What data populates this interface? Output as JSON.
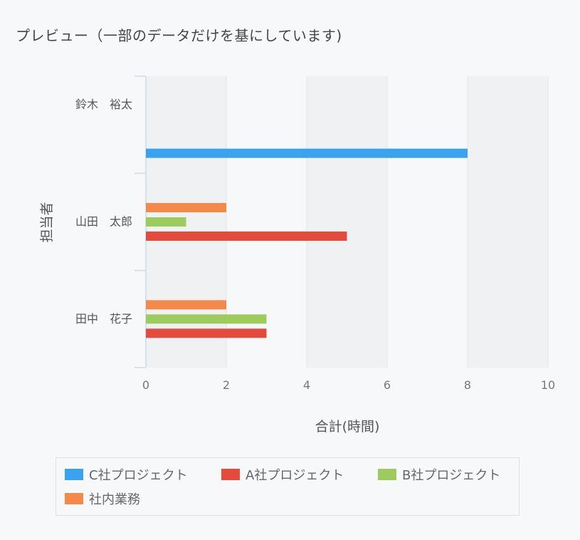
{
  "title": "プレビュー（一部のデータだけを基にしています)",
  "chart_data": {
    "type": "bar",
    "orientation": "horizontal",
    "categories": [
      "鈴木　裕太",
      "山田　太郎",
      "田中　花子"
    ],
    "series": [
      {
        "name": "C社プロジェクト",
        "color": "#3aa3ef",
        "values": [
          8,
          0,
          0
        ]
      },
      {
        "name": "A社プロジェクト",
        "color": "#e44b3c",
        "values": [
          0,
          5,
          3
        ]
      },
      {
        "name": "B社プロジェクト",
        "color": "#9dcb5c",
        "values": [
          0,
          1,
          3
        ]
      },
      {
        "name": "社内業務",
        "color": "#f5894a",
        "values": [
          0,
          2,
          2
        ]
      }
    ],
    "xlabel": "合計(時間)",
    "ylabel": "担当者",
    "xlim": [
      0,
      10
    ],
    "xticks": [
      "0",
      "2",
      "4",
      "6",
      "8",
      "10"
    ],
    "grid": "alternating vertical bands",
    "legend": "bottom"
  }
}
